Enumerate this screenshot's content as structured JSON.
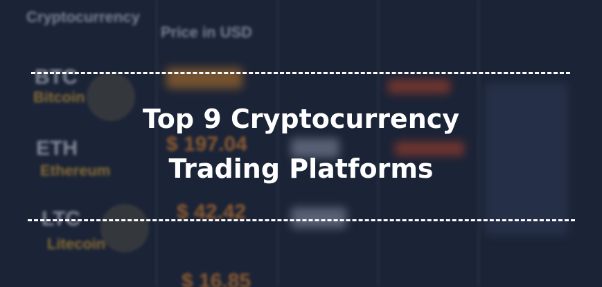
{
  "background_table": {
    "headers": [
      "Cryptocurrency",
      "Price in USD"
    ],
    "rows": [
      {
        "symbol": "BTC",
        "name": "Bitcoin"
      },
      {
        "symbol": "ETH",
        "name": "Ethereum",
        "price": "$ 197.04"
      },
      {
        "symbol": "LTC",
        "name": "Litecoin",
        "price": "$ 42.42"
      }
    ],
    "extra_price": "$ 16.85"
  },
  "banner": {
    "title_lines": [
      "Top 9 Cryptocurrency",
      "Trading Platforms"
    ]
  }
}
